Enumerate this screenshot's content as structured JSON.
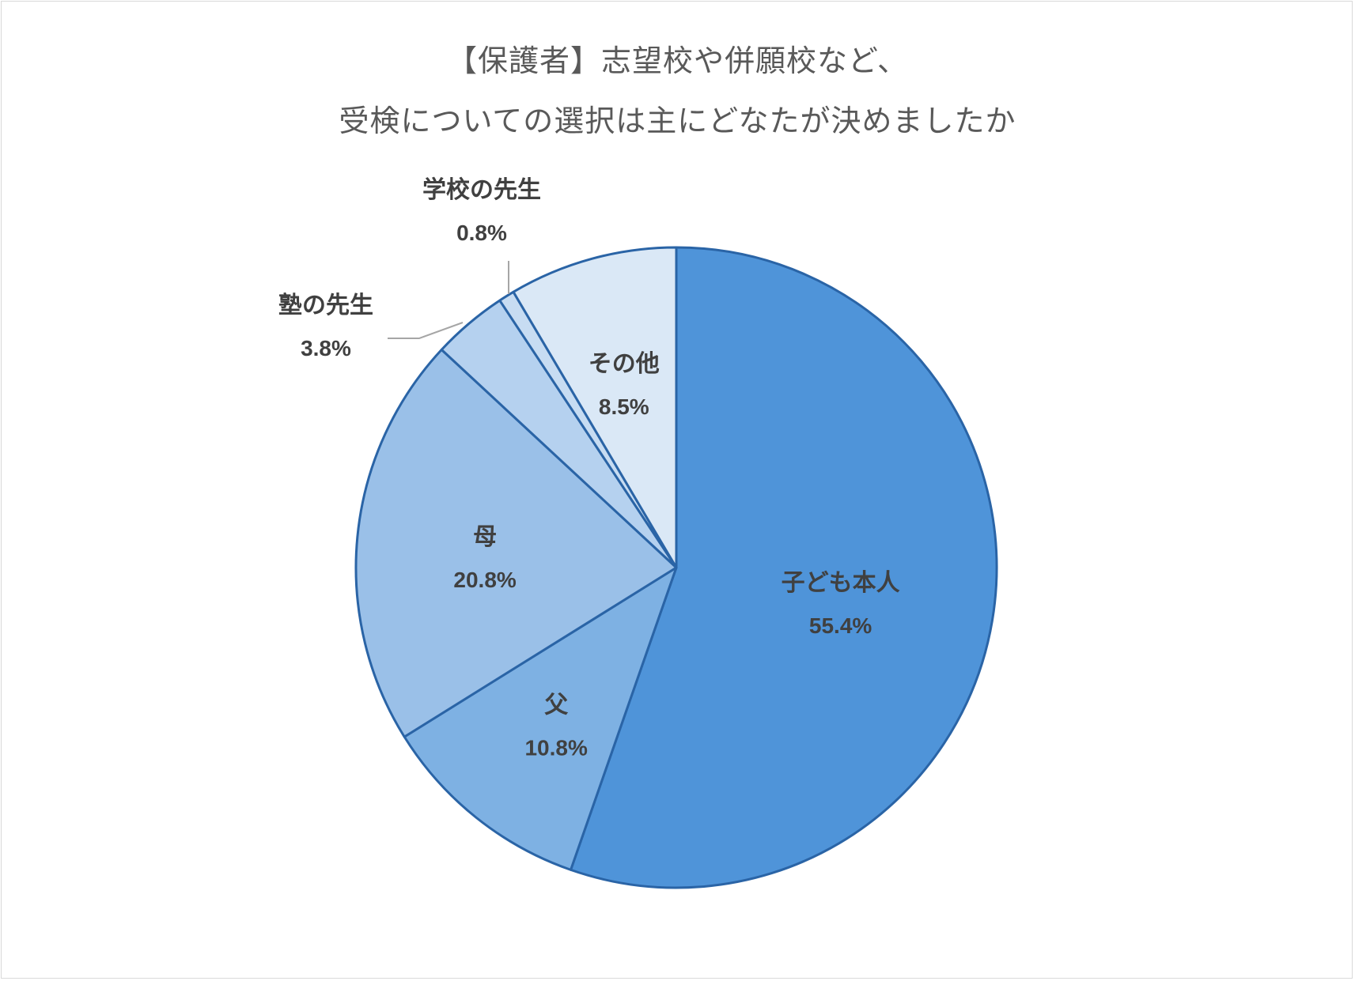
{
  "chart_data": {
    "type": "pie",
    "title_lines": [
      "【保護者】志望校や併願校など、",
      "受検についての選択は主にどなたが決めましたか"
    ],
    "slices": [
      {
        "label": "子ども本人",
        "value": 55.4,
        "value_text": "55.4%",
        "color": "#4f94d9"
      },
      {
        "label": "父",
        "value": 10.8,
        "value_text": "10.8%",
        "color": "#7eb1e3"
      },
      {
        "label": "母",
        "value": 20.8,
        "value_text": "20.8%",
        "color": "#9ac0e8"
      },
      {
        "label": "塾の先生",
        "value": 3.8,
        "value_text": "3.8%",
        "color": "#b5d1ef"
      },
      {
        "label": "学校の先生",
        "value": 0.8,
        "value_text": "0.8%",
        "color": "#c7dcf2"
      },
      {
        "label": "その他",
        "value": 8.5,
        "value_text": "8.5%",
        "color": "#dae8f6"
      }
    ],
    "start_angle": "12 o'clock",
    "direction": "clockwise",
    "slice_outline_color": "#2a64a6",
    "leader_line_color": "#a6a6a6",
    "legend": "none"
  }
}
